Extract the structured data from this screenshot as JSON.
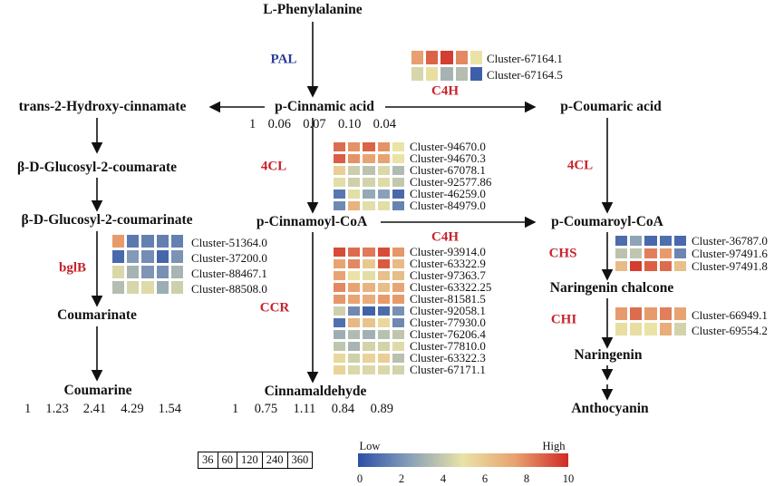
{
  "compounds": {
    "phe": "L-Phenylalanine",
    "cin": "p-Cinnamic acid",
    "hyd": "trans-2-Hydroxy-cinnamate",
    "cou": "p-Coumaric acid",
    "glc1": "β-D-Glucosyl-2-coumarate",
    "glc2": "β-D-Glucosyl-2-coumarinate",
    "coumarinate": "Coumarinate",
    "coumarine": "Coumarine",
    "coa": "p-Cinnamoyl-CoA",
    "pcoa": "p-Coumaroyl-CoA",
    "ald": "Cinnamaldehyde",
    "chal": "Naringenin chalcone",
    "nar": "Naringenin",
    "anth": "Anthocyanin"
  },
  "enzymes": {
    "pal": "PAL",
    "c4h_top": "C4H",
    "c4h_mid": "C4H",
    "cl4_left": "4CL",
    "cl4_right": "4CL",
    "bglb": "bglB",
    "ccr": "CCR",
    "chs": "CHS",
    "chi": "CHI"
  },
  "ratios": {
    "cin": [
      "1",
      "0.06",
      "0.07",
      "0.10",
      "0.04"
    ],
    "coumarine": [
      "1",
      "1.23",
      "2.41",
      "4.29",
      "1.54"
    ],
    "ald": [
      "1",
      "0.75",
      "1.11",
      "0.84",
      "0.89"
    ]
  },
  "heatmaps": {
    "c4h": [
      {
        "label": "Cluster-67164.1",
        "values": [
          7.5,
          8.8,
          9.6,
          8,
          5
        ]
      },
      {
        "label": "Cluster-67164.5",
        "values": [
          4.5,
          5.2,
          3.2,
          3.6,
          0.5
        ]
      }
    ],
    "cl4": [
      {
        "label": "Cluster-94670.0",
        "values": [
          8.6,
          7.8,
          8.8,
          7.8,
          5
        ]
      },
      {
        "label": "Cluster-94670.3",
        "values": [
          8.9,
          7.8,
          7.3,
          7.4,
          5
        ]
      },
      {
        "label": "Cluster-67078.1",
        "values": [
          5.8,
          4.2,
          3.8,
          4.6,
          3.5
        ]
      },
      {
        "label": "Cluster-92577.86",
        "values": [
          4.8,
          4.3,
          4.4,
          4.7,
          4
        ]
      },
      {
        "label": "Cluster-46259.0",
        "values": [
          1.2,
          4.8,
          2.8,
          2.5,
          0.8
        ]
      },
      {
        "label": "Cluster-84979.0",
        "values": [
          1.8,
          6.8,
          4.8,
          4.8,
          1.6
        ]
      }
    ],
    "ccr": [
      {
        "label": "Cluster-93914.0",
        "values": [
          9.3,
          8.6,
          8.3,
          9.3,
          7.7
        ]
      },
      {
        "label": "Cluster-63322.9",
        "values": [
          7.4,
          8,
          6,
          9,
          6.5
        ]
      },
      {
        "label": "Cluster-97363.7",
        "values": [
          7.4,
          5,
          4.8,
          6.3,
          6.4
        ]
      },
      {
        "label": "Cluster-63322.25",
        "values": [
          8,
          7.4,
          6.8,
          6.4,
          7.3
        ]
      },
      {
        "label": "Cluster-81581.5",
        "values": [
          7.7,
          7.3,
          7,
          7.6,
          7.6
        ]
      },
      {
        "label": "Cluster-92058.1",
        "values": [
          4.3,
          1.8,
          0.6,
          0.9,
          2
        ]
      },
      {
        "label": "Cluster-77930.0",
        "values": [
          1,
          6.6,
          6.2,
          5.4,
          1.8
        ]
      },
      {
        "label": "Cluster-76206.4",
        "values": [
          3,
          3.5,
          3.1,
          3.7,
          3.9
        ]
      },
      {
        "label": "Cluster-77810.0",
        "values": [
          3.9,
          3.3,
          4.4,
          4.4,
          4.7
        ]
      },
      {
        "label": "Cluster-63322.3",
        "values": [
          5.4,
          4.3,
          5.6,
          5.8,
          3.7
        ]
      },
      {
        "label": "Cluster-67171.1",
        "values": [
          5.6,
          4.6,
          4.6,
          4.6,
          4.4
        ]
      }
    ],
    "bglb": [
      {
        "label": "Cluster-51364.0",
        "values": [
          7.6,
          1.3,
          1.5,
          1.5,
          1.5
        ]
      },
      {
        "label": "Cluster-37200.0",
        "values": [
          0.8,
          2.3,
          1.9,
          0.7,
          2.1
        ]
      },
      {
        "label": "Cluster-88467.1",
        "values": [
          4.6,
          3.2,
          2.2,
          2,
          3.3
        ]
      },
      {
        "label": "Cluster-88508.0",
        "values": [
          3.6,
          4.5,
          4.7,
          3,
          4.3
        ]
      }
    ],
    "chs": [
      {
        "label": "Cluster-36787.0",
        "values": [
          0.9,
          2.6,
          0.8,
          1,
          0.8
        ]
      },
      {
        "label": "Cluster-97491.6",
        "values": [
          3.8,
          3.9,
          8.2,
          7.6,
          1.7
        ]
      },
      {
        "label": "Cluster-97491.8",
        "values": [
          6.5,
          9.6,
          8.9,
          8.6,
          6.3
        ]
      }
    ],
    "chi": [
      {
        "label": "Cluster-66949.1",
        "values": [
          7.6,
          8.6,
          7.6,
          8.2,
          7.4
        ]
      },
      {
        "label": "Cluster-69554.2",
        "values": [
          5.2,
          5.2,
          5,
          7,
          4.4
        ]
      }
    ]
  },
  "legend": {
    "times": [
      "36",
      "60",
      "120",
      "240",
      "360"
    ],
    "low": "Low",
    "high": "High",
    "ticks": [
      "0",
      "2",
      "4",
      "6",
      "8",
      "10"
    ],
    "min": 0,
    "max": 10
  },
  "colors": {
    "enzyme": "#c8232c",
    "pal": "#2b3a9a",
    "low": "#2a4fa6",
    "mid": "#e9e3a6",
    "high": "#d02a24"
  }
}
